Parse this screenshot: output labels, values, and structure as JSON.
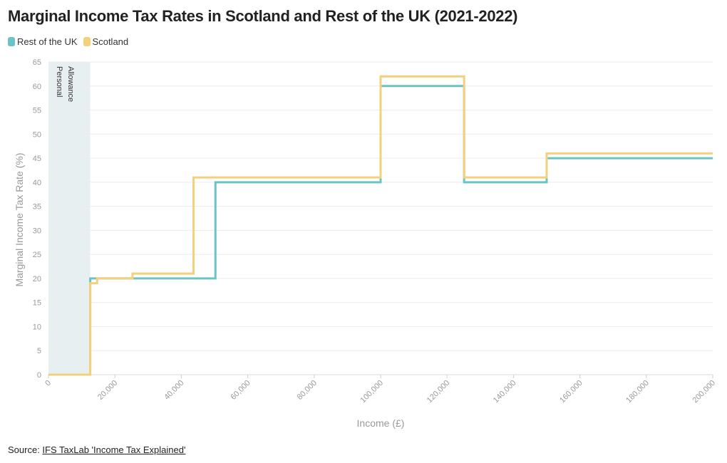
{
  "chart_data": {
    "type": "line",
    "step": true,
    "title": "Marginal Income Tax Rates in Scotland and Rest of the UK (2021-2022)",
    "xlabel": "Income (£)",
    "ylabel": "Marginal Income Tax Rate (%)",
    "xlim": [
      0,
      200000
    ],
    "ylim": [
      0,
      65
    ],
    "x_ticks": [
      "0",
      "20,000",
      "40,000",
      "60,000",
      "80,000",
      "100,000",
      "120,000",
      "140,000",
      "160,000",
      "180,000",
      "200,000"
    ],
    "y_ticks": [
      "0",
      "5",
      "10",
      "15",
      "20",
      "25",
      "30",
      "35",
      "40",
      "45",
      "50",
      "55",
      "60",
      "65"
    ],
    "grid": true,
    "legend_position": "top-left",
    "annotation": {
      "label": "Personal Allowance",
      "x_range": [
        0,
        12570
      ]
    },
    "series": [
      {
        "name": "Rest of the UK",
        "color": "#6cc3c6",
        "x": [
          0,
          12570,
          50270,
          100000,
          125140,
          150000,
          200000
        ],
        "values": [
          0,
          20,
          40,
          60,
          40,
          45,
          45
        ]
      },
      {
        "name": "Scotland",
        "color": "#f2d07c",
        "x": [
          0,
          12570,
          14667,
          25296,
          43662,
          100000,
          125140,
          150000,
          200000
        ],
        "values": [
          0,
          19,
          20,
          21,
          41,
          62,
          41,
          46,
          46
        ]
      }
    ]
  },
  "source": {
    "prefix": "Source: ",
    "link_text": "IFS TaxLab 'Income Tax Explained'"
  }
}
